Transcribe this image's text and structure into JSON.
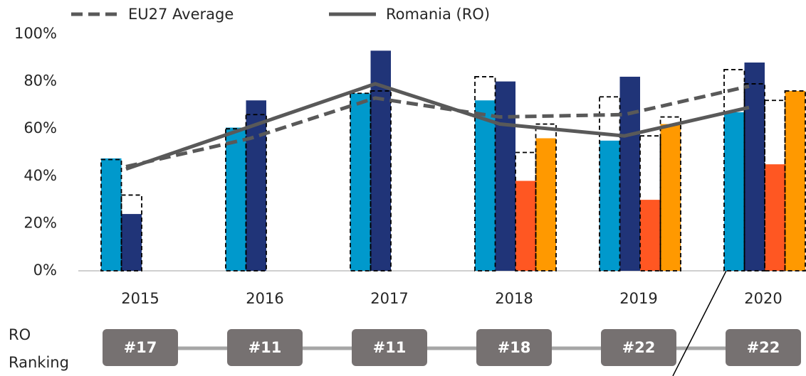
{
  "chart_data": {
    "type": "bar",
    "categories": [
      "2015",
      "2016",
      "2017",
      "2018",
      "2019",
      "2020"
    ],
    "ylim": [
      0,
      100
    ],
    "yticks": [
      {
        "value": 0,
        "label": "0%"
      },
      {
        "value": 20,
        "label": "20%"
      },
      {
        "value": 40,
        "label": "40%"
      },
      {
        "value": 60,
        "label": "60%"
      },
      {
        "value": 80,
        "label": "80%"
      },
      {
        "value": 100,
        "label": "100%"
      }
    ],
    "grid": false,
    "legend": "top",
    "series": [
      {
        "type": "bar",
        "color": "#0099cc",
        "values": [
          47.5,
          60.5,
          75,
          72,
          55,
          67
        ],
        "benchmark": [
          47,
          60,
          75,
          82,
          73.5,
          85
        ]
      },
      {
        "type": "bar",
        "color": "#203478",
        "values": [
          24,
          72,
          93,
          80,
          82,
          88
        ],
        "benchmark": [
          32,
          66,
          76,
          null,
          null,
          79
        ]
      },
      {
        "type": "bar",
        "color": "#ff5722",
        "values": [
          null,
          null,
          null,
          38,
          30,
          45
        ],
        "benchmark": [
          null,
          null,
          null,
          50,
          57,
          72
        ]
      },
      {
        "type": "bar",
        "color": "#ff9900",
        "values": [
          null,
          null,
          null,
          56,
          62,
          76
        ],
        "benchmark": [
          null,
          null,
          null,
          62,
          65,
          76
        ]
      },
      {
        "type": "line",
        "name": "EU27 Average",
        "color": "#595959",
        "dash": true,
        "values": [
          44,
          56,
          73,
          65,
          66,
          78
        ]
      },
      {
        "type": "line",
        "name": "Romania (RO)",
        "color": "#595959",
        "dash": false,
        "values": [
          43,
          61,
          79,
          62,
          57,
          69
        ]
      }
    ],
    "ranking_title": [
      "RO",
      "Ranking"
    ],
    "rankings": [
      "#17",
      "#11",
      "#11",
      "#18",
      "#22",
      "#22"
    ]
  }
}
